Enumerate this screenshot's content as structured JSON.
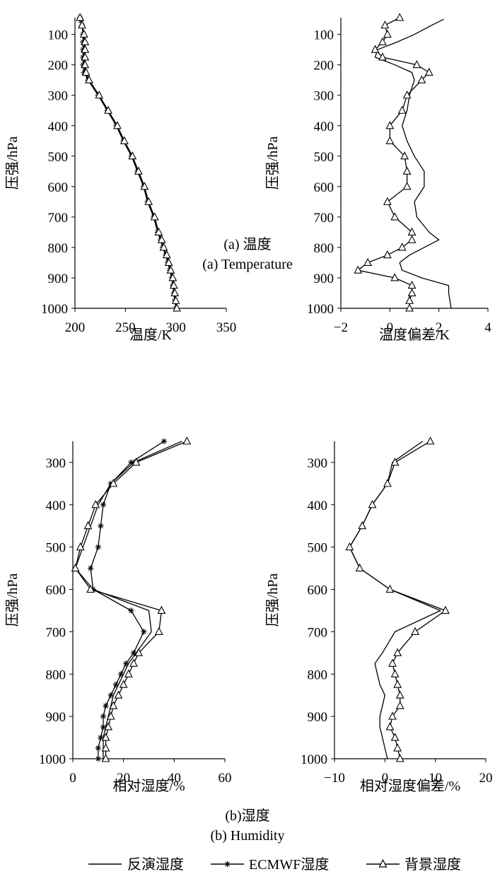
{
  "captions": {
    "a_cn": "(a) 温度",
    "a_en": "(a) Temperature",
    "b_cn": "(b)湿度",
    "b_en": "(b) Humidity"
  },
  "legend": {
    "retrieval": "反演湿度",
    "ecmwf": "ECMWF湿度",
    "background": "背景湿度"
  },
  "chart_data": [
    {
      "id": "temp",
      "type": "line",
      "xlabel": "温度/K",
      "ylabel": "压强/hPa",
      "xlim": [
        200,
        350
      ],
      "ylim": [
        1000,
        45
      ],
      "xticks": [
        200,
        250,
        300,
        350
      ],
      "yticks": [
        100,
        200,
        300,
        400,
        500,
        600,
        700,
        800,
        900,
        1000
      ],
      "series": [
        {
          "style": "solid",
          "points": [
            [
              205,
              45
            ],
            [
              206,
              55
            ],
            [
              207,
              70
            ],
            [
              208,
              100
            ],
            [
              209,
              125
            ],
            [
              209,
              150
            ],
            [
              209,
              175
            ],
            [
              209,
              200
            ],
            [
              210,
              225
            ],
            [
              213,
              250
            ],
            [
              223,
              300
            ],
            [
              232,
              350
            ],
            [
              241,
              400
            ],
            [
              248,
              450
            ],
            [
              256,
              500
            ],
            [
              262,
              550
            ],
            [
              268,
              600
            ],
            [
              272,
              650
            ],
            [
              278,
              700
            ],
            [
              282,
              750
            ],
            [
              285,
              775
            ],
            [
              287,
              800
            ],
            [
              290,
              825
            ],
            [
              292,
              850
            ],
            [
              294,
              875
            ],
            [
              296,
              900
            ],
            [
              297,
              925
            ],
            [
              298,
              950
            ],
            [
              299,
              975
            ],
            [
              300,
              1000
            ]
          ]
        },
        {
          "style": "star",
          "points": [
            [
              205,
              45
            ],
            [
              206,
              55
            ],
            [
              207,
              70
            ],
            [
              208,
              100
            ],
            [
              208,
              125
            ],
            [
              208,
              150
            ],
            [
              208,
              175
            ],
            [
              208,
              200
            ],
            [
              209,
              225
            ],
            [
              213,
              250
            ],
            [
              223,
              300
            ],
            [
              232,
              350
            ],
            [
              241,
              400
            ],
            [
              248,
              450
            ],
            [
              256,
              500
            ],
            [
              262,
              550
            ],
            [
              268,
              600
            ],
            [
              272,
              650
            ],
            [
              278,
              700
            ],
            [
              282,
              750
            ],
            [
              285,
              775
            ],
            [
              287,
              800
            ],
            [
              290,
              825
            ],
            [
              292,
              850
            ],
            [
              294,
              875
            ],
            [
              296,
              900
            ],
            [
              297,
              925
            ],
            [
              298,
              950
            ],
            [
              299,
              975
            ],
            [
              300,
              1000
            ]
          ]
        },
        {
          "style": "triangle",
          "points": [
            [
              205,
              45
            ],
            [
              207,
              70
            ],
            [
              209,
              100
            ],
            [
              210,
              125
            ],
            [
              210,
              150
            ],
            [
              210,
              175
            ],
            [
              210,
              200
            ],
            [
              211,
              225
            ],
            [
              214,
              250
            ],
            [
              224,
              300
            ],
            [
              233,
              350
            ],
            [
              242,
              400
            ],
            [
              249,
              450
            ],
            [
              257,
              500
            ],
            [
              263,
              550
            ],
            [
              269,
              600
            ],
            [
              273,
              650
            ],
            [
              279,
              700
            ],
            [
              283,
              750
            ],
            [
              286,
              775
            ],
            [
              288,
              800
            ],
            [
              291,
              825
            ],
            [
              293,
              850
            ],
            [
              295,
              875
            ],
            [
              297,
              900
            ],
            [
              298,
              925
            ],
            [
              299,
              950
            ],
            [
              300,
              975
            ],
            [
              301,
              1000
            ]
          ]
        }
      ]
    },
    {
      "id": "temp_bias",
      "type": "line",
      "xlabel": "温度偏差/K",
      "ylabel": "压强/hPa",
      "xlim": [
        -2,
        4
      ],
      "ylim": [
        1000,
        45
      ],
      "xticks": [
        -2,
        0,
        2,
        4
      ],
      "yticks": [
        100,
        200,
        300,
        400,
        500,
        600,
        700,
        800,
        900,
        1000
      ],
      "series": [
        {
          "style": "solid",
          "points": [
            [
              2.2,
              50
            ],
            [
              1.7,
              70
            ],
            [
              1.0,
              100
            ],
            [
              0.3,
              125
            ],
            [
              -0.5,
              150
            ],
            [
              -0.6,
              175
            ],
            [
              0.2,
              200
            ],
            [
              0.9,
              225
            ],
            [
              1.0,
              250
            ],
            [
              0.8,
              300
            ],
            [
              0.7,
              350
            ],
            [
              0.5,
              400
            ],
            [
              0.7,
              450
            ],
            [
              1.0,
              500
            ],
            [
              1.4,
              550
            ],
            [
              1.4,
              600
            ],
            [
              1.0,
              650
            ],
            [
              1.1,
              700
            ],
            [
              1.6,
              750
            ],
            [
              2.0,
              775
            ],
            [
              1.4,
              800
            ],
            [
              0.8,
              825
            ],
            [
              0.4,
              850
            ],
            [
              0.5,
              875
            ],
            [
              1.3,
              900
            ],
            [
              2.4,
              925
            ],
            [
              2.4,
              950
            ],
            [
              2.5,
              1000
            ]
          ]
        },
        {
          "style": "triangle",
          "points": [
            [
              0.4,
              45
            ],
            [
              -0.2,
              70
            ],
            [
              -0.1,
              100
            ],
            [
              -0.3,
              125
            ],
            [
              -0.6,
              150
            ],
            [
              -0.3,
              175
            ],
            [
              1.1,
              200
            ],
            [
              1.6,
              225
            ],
            [
              1.3,
              250
            ],
            [
              0.7,
              300
            ],
            [
              0.5,
              350
            ],
            [
              0.0,
              400
            ],
            [
              0.0,
              450
            ],
            [
              0.6,
              500
            ],
            [
              0.7,
              550
            ],
            [
              0.7,
              600
            ],
            [
              -0.1,
              650
            ],
            [
              0.2,
              700
            ],
            [
              0.9,
              750
            ],
            [
              0.9,
              775
            ],
            [
              0.5,
              800
            ],
            [
              -0.1,
              825
            ],
            [
              -0.9,
              850
            ],
            [
              -1.3,
              875
            ],
            [
              0.2,
              900
            ],
            [
              0.9,
              925
            ],
            [
              0.9,
              950
            ],
            [
              0.8,
              975
            ],
            [
              0.8,
              1000
            ]
          ]
        }
      ]
    },
    {
      "id": "humidity",
      "type": "line",
      "xlabel": "相对湿度/%",
      "ylabel": "压强/hPa",
      "xlim": [
        0,
        60
      ],
      "ylim": [
        1000,
        250
      ],
      "xticks": [
        0,
        20,
        40,
        60
      ],
      "yticks": [
        300,
        400,
        500,
        600,
        700,
        800,
        900,
        1000
      ],
      "series": [
        {
          "style": "solid",
          "points": [
            [
              43,
              250
            ],
            [
              24,
              300
            ],
            [
              15,
              350
            ],
            [
              10,
              400
            ],
            [
              7,
              450
            ],
            [
              4,
              500
            ],
            [
              1,
              550
            ],
            [
              8,
              600
            ],
            [
              30,
              650
            ],
            [
              31,
              700
            ],
            [
              25,
              750
            ],
            [
              22,
              775
            ],
            [
              20,
              800
            ],
            [
              18,
              825
            ],
            [
              16,
              850
            ],
            [
              15,
              875
            ],
            [
              14,
              900
            ],
            [
              13,
              925
            ],
            [
              12,
              950
            ],
            [
              12,
              975
            ],
            [
              12,
              1000
            ]
          ]
        },
        {
          "style": "star",
          "points": [
            [
              36,
              250
            ],
            [
              23,
              300
            ],
            [
              15,
              350
            ],
            [
              12,
              400
            ],
            [
              11,
              450
            ],
            [
              10,
              500
            ],
            [
              7,
              550
            ],
            [
              8,
              600
            ],
            [
              23,
              650
            ],
            [
              28,
              700
            ],
            [
              24,
              750
            ],
            [
              21,
              775
            ],
            [
              19,
              800
            ],
            [
              17,
              825
            ],
            [
              15,
              850
            ],
            [
              13,
              875
            ],
            [
              12,
              900
            ],
            [
              12,
              925
            ],
            [
              11,
              950
            ],
            [
              10,
              975
            ],
            [
              10,
              1000
            ]
          ]
        },
        {
          "style": "triangle",
          "points": [
            [
              45,
              250
            ],
            [
              25,
              300
            ],
            [
              16,
              350
            ],
            [
              9,
              400
            ],
            [
              6,
              450
            ],
            [
              3,
              500
            ],
            [
              1,
              550
            ],
            [
              7,
              600
            ],
            [
              35,
              650
            ],
            [
              34,
              700
            ],
            [
              26,
              750
            ],
            [
              24,
              775
            ],
            [
              22,
              800
            ],
            [
              20,
              825
            ],
            [
              18,
              850
            ],
            [
              16,
              875
            ],
            [
              15,
              900
            ],
            [
              14,
              925
            ],
            [
              13,
              950
            ],
            [
              13,
              975
            ],
            [
              13,
              1000
            ]
          ]
        }
      ]
    },
    {
      "id": "humidity_bias",
      "type": "line",
      "xlabel": "相对湿度偏差/%",
      "ylabel": "压强/hPa",
      "xlim": [
        -10,
        20
      ],
      "ylim": [
        1000,
        250
      ],
      "xticks": [
        -10,
        0,
        10,
        20
      ],
      "yticks": [
        300,
        400,
        500,
        600,
        700,
        800,
        900,
        1000
      ],
      "series": [
        {
          "style": "solid",
          "points": [
            [
              7.5,
              250
            ],
            [
              1.5,
              300
            ],
            [
              0.5,
              350
            ],
            [
              -2.5,
              400
            ],
            [
              -4.5,
              450
            ],
            [
              -7,
              500
            ],
            [
              -5,
              550
            ],
            [
              1,
              600
            ],
            [
              11,
              650
            ],
            [
              2,
              700
            ],
            [
              -0.5,
              750
            ],
            [
              -2,
              775
            ],
            [
              -1.5,
              800
            ],
            [
              -1,
              825
            ],
            [
              0,
              850
            ],
            [
              -0.5,
              875
            ],
            [
              -1,
              900
            ],
            [
              -1,
              925
            ],
            [
              -0.5,
              950
            ],
            [
              0,
              975
            ],
            [
              0.5,
              1000
            ]
          ]
        },
        {
          "style": "triangle",
          "points": [
            [
              9,
              250
            ],
            [
              2,
              300
            ],
            [
              0.5,
              350
            ],
            [
              -2.5,
              400
            ],
            [
              -4.5,
              450
            ],
            [
              -7,
              500
            ],
            [
              -5,
              550
            ],
            [
              1,
              600
            ],
            [
              12,
              650
            ],
            [
              6,
              700
            ],
            [
              2.5,
              750
            ],
            [
              1.5,
              775
            ],
            [
              2,
              800
            ],
            [
              2.5,
              825
            ],
            [
              3,
              850
            ],
            [
              3,
              875
            ],
            [
              1.5,
              900
            ],
            [
              1,
              925
            ],
            [
              2,
              950
            ],
            [
              2.5,
              975
            ],
            [
              3,
              1000
            ]
          ]
        }
      ]
    }
  ]
}
